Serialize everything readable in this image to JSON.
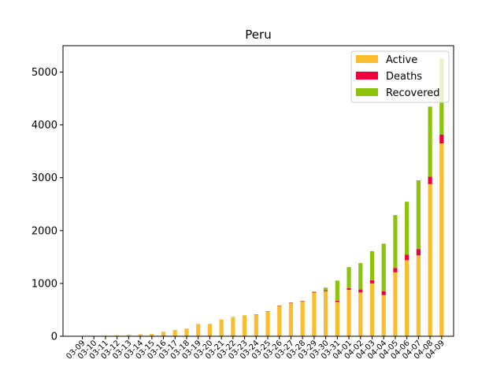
{
  "chart_data": {
    "type": "bar",
    "stacked": true,
    "title": "Peru",
    "xlabel": "",
    "ylabel": "",
    "ylim": [
      0,
      5500
    ],
    "yticks": [
      0,
      1000,
      2000,
      3000,
      4000,
      5000
    ],
    "legend_position": "top-right",
    "grid": false,
    "categories": [
      "03-09",
      "03-10",
      "03-11",
      "03-12",
      "03-13",
      "03-14",
      "03-15",
      "03-16",
      "03-17",
      "03-18",
      "03-19",
      "03-20",
      "03-21",
      "03-22",
      "03-23",
      "03-24",
      "03-25",
      "03-26",
      "03-27",
      "03-28",
      "03-29",
      "03-30",
      "03-31",
      "04-01",
      "04-02",
      "04-03",
      "04-04",
      "04-05",
      "04-06",
      "04-07",
      "04-08",
      "04-09"
    ],
    "series": [
      {
        "name": "Active",
        "color": "#fbbc2e",
        "values": [
          7,
          9,
          11,
          17,
          28,
          38,
          43,
          86,
          117,
          145,
          234,
          234,
          318,
          363,
          395,
          409,
          467,
          572,
          627,
          654,
          826,
          852,
          650,
          880,
          830,
          1000,
          780,
          1210,
          1440,
          1530,
          2880,
          3650
        ]
      },
      {
        "name": "Deaths",
        "color": "#f0003c",
        "values": [
          0,
          0,
          0,
          0,
          0,
          0,
          0,
          0,
          0,
          0,
          0,
          0,
          0,
          0,
          0,
          5,
          7,
          9,
          9,
          11,
          16,
          18,
          24,
          30,
          55,
          61,
          73,
          83,
          107,
          121,
          138,
          169
        ]
      },
      {
        "name": "Recovered",
        "color": "#8bc40a",
        "values": [
          0,
          0,
          0,
          0,
          0,
          0,
          0,
          0,
          0,
          0,
          0,
          0,
          0,
          1,
          1,
          1,
          1,
          1,
          1,
          1,
          1,
          50,
          380,
          400,
          500,
          550,
          900,
          1000,
          1000,
          1300,
          1330,
          1440
        ]
      }
    ]
  }
}
